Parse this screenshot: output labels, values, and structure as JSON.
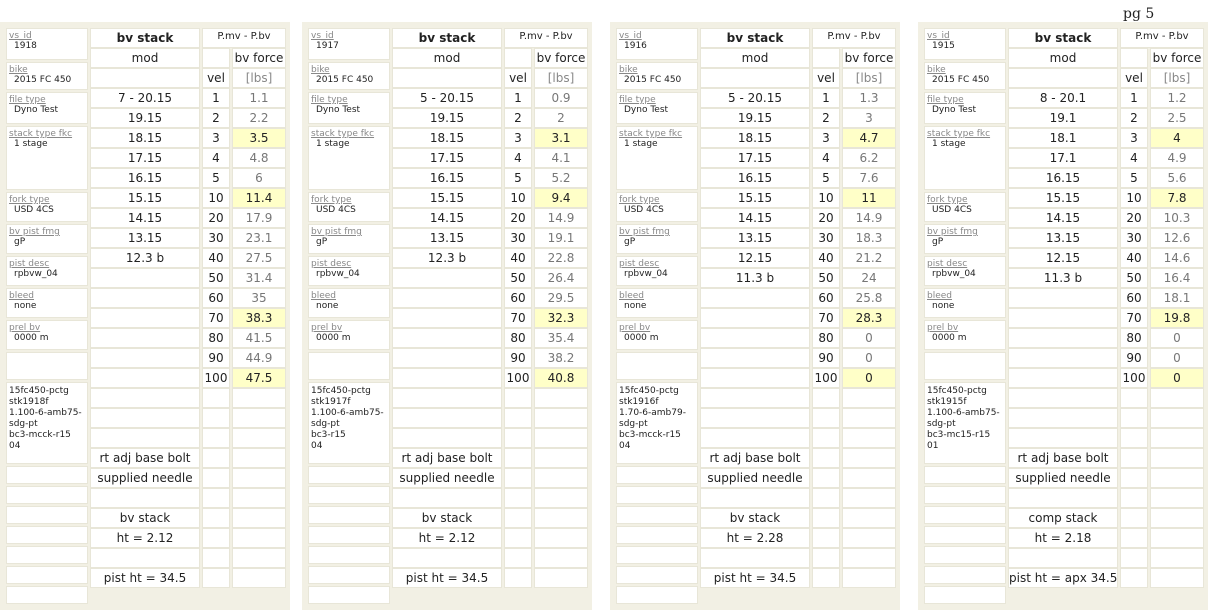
{
  "page_label": "pg 5",
  "left_labels": {
    "vs_id": "vs_id",
    "bike": "bike",
    "file_type": "file type",
    "stack_type": "stack type fkc",
    "fork_type": "fork type",
    "pist_fmg": "bv pist fmg",
    "pist_desc": "pist desc",
    "bleed": "bleed",
    "prel": "prel bv"
  },
  "col_headers": {
    "stack": "bv stack",
    "mod": "mod",
    "pmv": "P.mv - P.bv",
    "force": "bv force",
    "vel": "vel",
    "lbs": "[lbs]"
  },
  "vel": [
    "1",
    "2",
    "3",
    "4",
    "5",
    "10",
    "20",
    "30",
    "40",
    "50",
    "60",
    "70",
    "80",
    "90",
    "100"
  ],
  "panels": [
    {
      "vs_id": "1918",
      "bike": "2015 FC 450",
      "file_type": "Dyno Test",
      "stack_type": "1 stage",
      "fork_type": "USD 4CS",
      "pist_fmg": "gP",
      "pist_desc": "rpbvw_04",
      "bleed": "none",
      "prel": "0000 m",
      "notes": "15fc450-pctg\nstk1918f\n1.100-6-amb75-\nsdg-pt\nbc3-mcck-r15\n04",
      "stack": [
        "7 - 20.15",
        "19.15",
        "18.15",
        "17.15",
        "16.15",
        "15.15",
        "14.15",
        "13.15",
        "12.3 b"
      ],
      "force": [
        "1.1",
        "2.2",
        "3.5",
        "4.8",
        "6",
        "11.4",
        "17.9",
        "23.1",
        "27.5",
        "31.4",
        "35",
        "38.3",
        "41.5",
        "44.9",
        "47.5"
      ],
      "highlight": [
        2,
        5,
        11,
        14
      ],
      "adj": "rt adj base bolt",
      "needle": "supplied needle",
      "stack_name": "bv stack",
      "ht": "ht = 2.12",
      "pist_ht": "pist ht = 34.5"
    },
    {
      "vs_id": "1917",
      "bike": "2015 FC 450",
      "file_type": "Dyno Test",
      "stack_type": "1 stage",
      "fork_type": "USD 4CS",
      "pist_fmg": "gP",
      "pist_desc": "rpbvw_04",
      "bleed": "none",
      "prel": "0000 m",
      "notes": "15fc450-pctg\nstk1917f\n1.100-6-amb75-\nsdg-pt\nbc3-r15\n04",
      "stack": [
        "5 - 20.15",
        "19.15",
        "18.15",
        "17.15",
        "16.15",
        "15.15",
        "14.15",
        "13.15",
        "12.3 b"
      ],
      "force": [
        "0.9",
        "2",
        "3.1",
        "4.1",
        "5.2",
        "9.4",
        "14.9",
        "19.1",
        "22.8",
        "26.4",
        "29.5",
        "32.3",
        "35.4",
        "38.2",
        "40.8"
      ],
      "highlight": [
        2,
        5,
        11,
        14
      ],
      "adj": "rt adj base bolt",
      "needle": "supplied needle",
      "stack_name": "bv stack",
      "ht": "ht = 2.12",
      "pist_ht": "pist ht = 34.5"
    },
    {
      "vs_id": "1916",
      "bike": "2015 FC 450",
      "file_type": "Dyno Test",
      "stack_type": "1 stage",
      "fork_type": "USD 4CS",
      "pist_fmg": "gP",
      "pist_desc": "rpbvw_04",
      "bleed": "none",
      "prel": "0000 m",
      "notes": "15fc450-pctg\nstk1916f\n1.70-6-amb79-\nsdg-pt\nbc3-mcck-r15\n04",
      "stack": [
        "5 - 20.15",
        "19.15",
        "18.15",
        "17.15",
        "16.15",
        "15.15",
        "14.15",
        "13.15",
        "12.15",
        "11.3 b"
      ],
      "force": [
        "1.3",
        "3",
        "4.7",
        "6.2",
        "7.6",
        "11",
        "14.9",
        "18.3",
        "21.2",
        "24",
        "25.8",
        "28.3",
        "0",
        "0",
        "0"
      ],
      "highlight": [
        2,
        5,
        11,
        14
      ],
      "adj": "rt adj base bolt",
      "needle": "supplied needle",
      "stack_name": "bv stack",
      "ht": "ht = 2.28",
      "pist_ht": "pist ht = 34.5"
    },
    {
      "vs_id": "1915",
      "bike": "2015 FC 450",
      "file_type": "Dyno Test",
      "stack_type": "1 stage",
      "fork_type": "USD 4CS",
      "pist_fmg": "gP",
      "pist_desc": "rpbvw_04",
      "bleed": "none",
      "prel": "0000 m",
      "notes": "15fc450-pctg\nstk1915f\n1.100-6-amb75-\nsdg-pt\nbc3-mc15-r15\n01",
      "stack": [
        "8 - 20.1",
        "19.1",
        "18.1",
        "17.1",
        "16.15",
        "15.15",
        "14.15",
        "13.15",
        "12.15",
        "11.3 b"
      ],
      "force": [
        "1.2",
        "2.5",
        "4",
        "4.9",
        "5.6",
        "7.8",
        "10.3",
        "12.6",
        "14.6",
        "16.4",
        "18.1",
        "19.8",
        "0",
        "0",
        "0"
      ],
      "highlight": [
        2,
        5,
        11,
        14
      ],
      "adj": "rt adj base bolt",
      "needle": "supplied needle",
      "stack_name": "comp stack",
      "ht": "ht = 2.18",
      "pist_ht": "pist ht = apx 34.5"
    }
  ]
}
